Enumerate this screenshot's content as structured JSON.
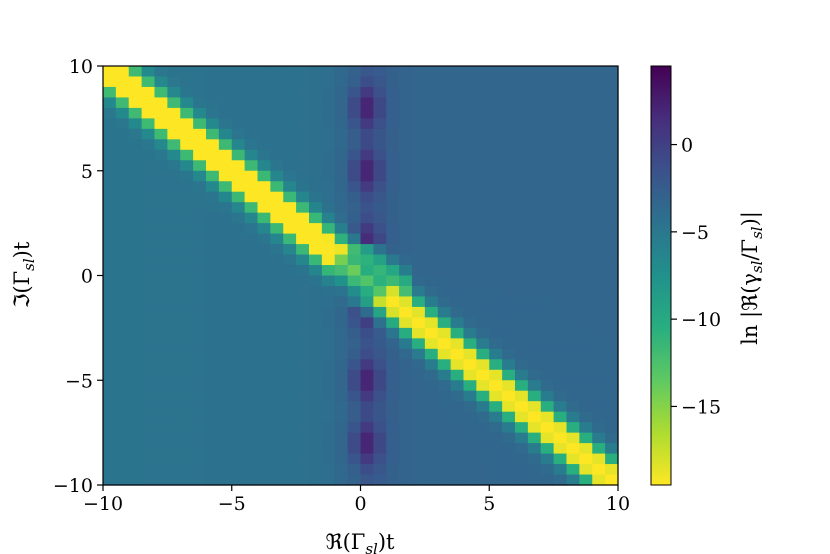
{
  "chart_data": {
    "type": "heatmap",
    "title": "",
    "xlabel_parts": {
      "prefix": "ℜ(Γ",
      "sub": "sl",
      "suffix": ")t"
    },
    "ylabel_parts": {
      "prefix": "ℑ(Γ",
      "sub": "sl",
      "suffix": ")t"
    },
    "colorbar_label_parts": {
      "a": "ln |ℜ(γ",
      "b": "sl",
      "c": "/Γ",
      "d": "sl",
      "e": ")|"
    },
    "xlim": [
      -10,
      10
    ],
    "ylim": [
      -10,
      10
    ],
    "xticks": [
      {
        "value": -10,
        "label": "−10"
      },
      {
        "value": -5,
        "label": "−5"
      },
      {
        "value": 0,
        "label": "0"
      },
      {
        "value": 5,
        "label": "5"
      },
      {
        "value": 10,
        "label": "10"
      }
    ],
    "yticks": [
      {
        "value": 10,
        "label": "10"
      },
      {
        "value": 5,
        "label": "5"
      },
      {
        "value": 0,
        "label": "0"
      },
      {
        "value": -5,
        "label": "−5"
      },
      {
        "value": -10,
        "label": "−10"
      }
    ],
    "colorbar_range": [
      -19.5,
      4.5
    ],
    "colorbar_ticks": [
      {
        "value": 0,
        "label": "0"
      },
      {
        "value": -5,
        "label": "−5"
      },
      {
        "value": -10,
        "label": "−10"
      },
      {
        "value": -15,
        "label": "−15"
      }
    ],
    "colormap": "viridis_r",
    "grid": false,
    "grid_resolution": 40,
    "field": {
      "base_left": -4.3,
      "base_right": -3.4,
      "diagonal_min": -19.5,
      "diagonal_width": 0.5,
      "dark_lobe_centers_y": [
        -8,
        -5,
        -1.5,
        1.5,
        5,
        8
      ],
      "dark_lobe_peak": 4.4,
      "crossing_x": 1.1
    }
  }
}
